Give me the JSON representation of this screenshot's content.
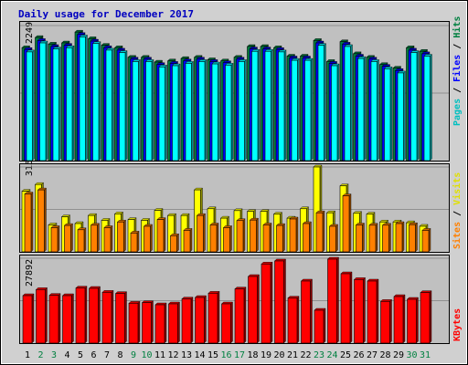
{
  "chart_data": [
    {
      "type": "bar",
      "title": "Daily usage for December 2017",
      "panel": "hits-files-pages",
      "categories": [
        "1",
        "2",
        "3",
        "4",
        "5",
        "6",
        "7",
        "8",
        "9",
        "10",
        "11",
        "12",
        "13",
        "14",
        "15",
        "16",
        "17",
        "18",
        "19",
        "20",
        "21",
        "22",
        "23",
        "24",
        "25",
        "26",
        "27",
        "28",
        "29",
        "30",
        "31"
      ],
      "weekend_days": [
        "2",
        "3",
        "9",
        "10",
        "16",
        "17",
        "23",
        "24",
        "30",
        "31"
      ],
      "ymax_label": "2249",
      "ylim": [
        0,
        2249
      ],
      "series": [
        {
          "name": "Hits",
          "color": "#008040",
          "values": [
            1880,
            2050,
            1940,
            1960,
            2140,
            2030,
            1920,
            1880,
            1720,
            1720,
            1640,
            1660,
            1700,
            1720,
            1680,
            1660,
            1720,
            1900,
            1900,
            1880,
            1740,
            1740,
            2000,
            1650,
            1980,
            1780,
            1720,
            1600,
            1540,
            1880,
            1820
          ]
        },
        {
          "name": "Files",
          "color": "#0000ff",
          "values": [
            1850,
            2000,
            1900,
            1920,
            2100,
            1990,
            1880,
            1840,
            1690,
            1690,
            1600,
            1620,
            1660,
            1690,
            1650,
            1630,
            1690,
            1860,
            1860,
            1850,
            1710,
            1710,
            1960,
            1620,
            1940,
            1740,
            1690,
            1570,
            1500,
            1840,
            1780
          ]
        },
        {
          "name": "Pages",
          "color": "#00ffff",
          "values": [
            1810,
            1960,
            1860,
            1880,
            2060,
            1950,
            1840,
            1800,
            1650,
            1650,
            1560,
            1580,
            1620,
            1650,
            1610,
            1590,
            1650,
            1820,
            1820,
            1810,
            1670,
            1670,
            1920,
            1580,
            1900,
            1700,
            1650,
            1530,
            1460,
            1800,
            1740
          ]
        }
      ]
    },
    {
      "type": "bar",
      "panel": "visits-sites",
      "categories": [
        "1",
        "2",
        "3",
        "4",
        "5",
        "6",
        "7",
        "8",
        "9",
        "10",
        "11",
        "12",
        "13",
        "14",
        "15",
        "16",
        "17",
        "18",
        "19",
        "20",
        "21",
        "22",
        "23",
        "24",
        "25",
        "26",
        "27",
        "28",
        "29",
        "30",
        "31"
      ],
      "ymax_label": "315",
      "ylim": [
        0,
        315
      ],
      "series": [
        {
          "name": "Visits",
          "color": "#ffff00",
          "values": [
            225,
            250,
            100,
            130,
            105,
            135,
            117,
            141,
            120,
            117,
            154,
            135,
            135,
            230,
            160,
            125,
            153,
            150,
            150,
            140,
            125,
            160,
            315,
            145,
            245,
            143,
            140,
            111,
            111,
            108,
            95
          ]
        },
        {
          "name": "Sites",
          "color": "#ff8000",
          "values": [
            215,
            230,
            90,
            98,
            82,
            99,
            90,
            111,
            70,
            95,
            120,
            60,
            80,
            135,
            100,
            90,
            116,
            118,
            100,
            98,
            122,
            105,
            145,
            95,
            208,
            100,
            99,
            99,
            105,
            101,
            80
          ]
        }
      ]
    },
    {
      "type": "bar",
      "panel": "kbytes",
      "categories": [
        "1",
        "2",
        "3",
        "4",
        "5",
        "6",
        "7",
        "8",
        "9",
        "10",
        "11",
        "12",
        "13",
        "14",
        "15",
        "16",
        "17",
        "18",
        "19",
        "20",
        "21",
        "22",
        "23",
        "24",
        "25",
        "26",
        "27",
        "28",
        "29",
        "30",
        "31"
      ],
      "ymax_label": "27892",
      "ylim": [
        0,
        27892
      ],
      "series": [
        {
          "name": "KBytes",
          "color": "#ff0000",
          "values": [
            15600,
            17600,
            15700,
            15600,
            18100,
            18000,
            16700,
            16300,
            13100,
            13300,
            12600,
            12900,
            14500,
            15000,
            16400,
            12900,
            17800,
            21900,
            26000,
            27000,
            14800,
            20400,
            10800,
            27600,
            22800,
            20900,
            20400,
            13700,
            15300,
            14400,
            16600
          ]
        }
      ]
    }
  ]
}
